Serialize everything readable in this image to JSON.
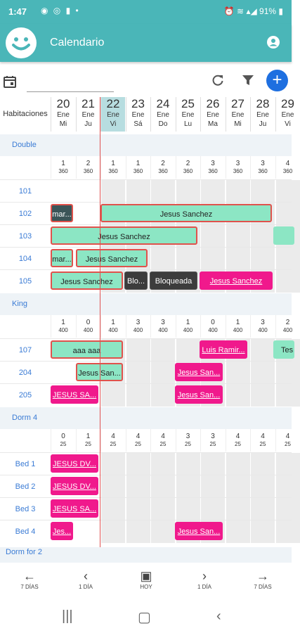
{
  "status": {
    "time": "1:47",
    "battery": "91%"
  },
  "app": {
    "title": "Calendario"
  },
  "header": {
    "habitaciones": "Habitaciones"
  },
  "days": [
    {
      "num": "20",
      "month": "Ene",
      "wday": "Mi"
    },
    {
      "num": "21",
      "month": "Ene",
      "wday": "Ju"
    },
    {
      "num": "22",
      "month": "Ene",
      "wday": "Vi"
    },
    {
      "num": "23",
      "month": "Ene",
      "wday": "Sá"
    },
    {
      "num": "24",
      "month": "Ene",
      "wday": "Do"
    },
    {
      "num": "25",
      "month": "Ene",
      "wday": "Lu"
    },
    {
      "num": "26",
      "month": "Ene",
      "wday": "Ma"
    },
    {
      "num": "27",
      "month": "Ene",
      "wday": "Mi"
    },
    {
      "num": "28",
      "month": "Ene",
      "wday": "Ju"
    },
    {
      "num": "29",
      "month": "Ene",
      "wday": "Vi"
    }
  ],
  "sections": [
    {
      "name": "Double"
    },
    {
      "name": "King"
    },
    {
      "name": "Dorm 4"
    },
    {
      "name": "Dorm for 2"
    }
  ],
  "availability": {
    "double": [
      [
        "1",
        "360"
      ],
      [
        "2",
        "360"
      ],
      [
        "1",
        "360"
      ],
      [
        "1",
        "360"
      ],
      [
        "2",
        "360"
      ],
      [
        "2",
        "360"
      ],
      [
        "3",
        "360"
      ],
      [
        "3",
        "360"
      ],
      [
        "3",
        "360"
      ],
      [
        "4",
        "360"
      ]
    ],
    "king": [
      [
        "1",
        "400"
      ],
      [
        "0",
        "400"
      ],
      [
        "1",
        "400"
      ],
      [
        "3",
        "400"
      ],
      [
        "3",
        "400"
      ],
      [
        "1",
        "400"
      ],
      [
        "0",
        "400"
      ],
      [
        "1",
        "400"
      ],
      [
        "3",
        "400"
      ],
      [
        "2",
        "400"
      ]
    ],
    "dorm4": [
      [
        "0",
        "25"
      ],
      [
        "1",
        "25"
      ],
      [
        "4",
        "25"
      ],
      [
        "4",
        "25"
      ],
      [
        "4",
        "25"
      ],
      [
        "3",
        "25"
      ],
      [
        "3",
        "25"
      ],
      [
        "4",
        "25"
      ],
      [
        "4",
        "25"
      ],
      [
        "4",
        "25"
      ]
    ]
  },
  "rooms": {
    "r101": "101",
    "r102": "102",
    "r103": "103",
    "r104": "104",
    "r105": "105",
    "r107": "107",
    "r204": "204",
    "r205": "205",
    "bed1": "Bed 1",
    "bed2": "Bed 2",
    "bed3": "Bed 3",
    "bed4": "Bed 4"
  },
  "bookings": {
    "b102a": "mar...",
    "b102b": "Jesus Sanchez",
    "b103": "Jesus Sanchez",
    "b104a": "mar...",
    "b104b": "Jesus Sanchez",
    "b105a": "Jesus Sanchez",
    "b105b": "Blo...",
    "b105c": "Bloqueada",
    "b105d": "Jesus Sanchez",
    "b107a": "aaa aaa",
    "b107b": "Luis Ramir...",
    "b107c": "Tes",
    "b204a": "Jesus San...",
    "b204b": "Jesus San...",
    "b205a": "JESUS SA...",
    "b205b": "Jesus San...",
    "bed1": "JESUS DV...",
    "bed2": "JESUS DV...",
    "bed3": "JESUS SA...",
    "bed4a": "Jes...",
    "bed4b": "Jesus San..."
  },
  "nav": {
    "prev7": "7 DÍAS",
    "prev1": "1 DÍA",
    "today": "HOY",
    "next1": "1 DÍA",
    "next7": "7 DÍAS"
  },
  "colors": {
    "primary": "#4ab6b8",
    "accent": "#1e6fe0",
    "pink": "#f0198c",
    "green": "#8ce6c4"
  }
}
